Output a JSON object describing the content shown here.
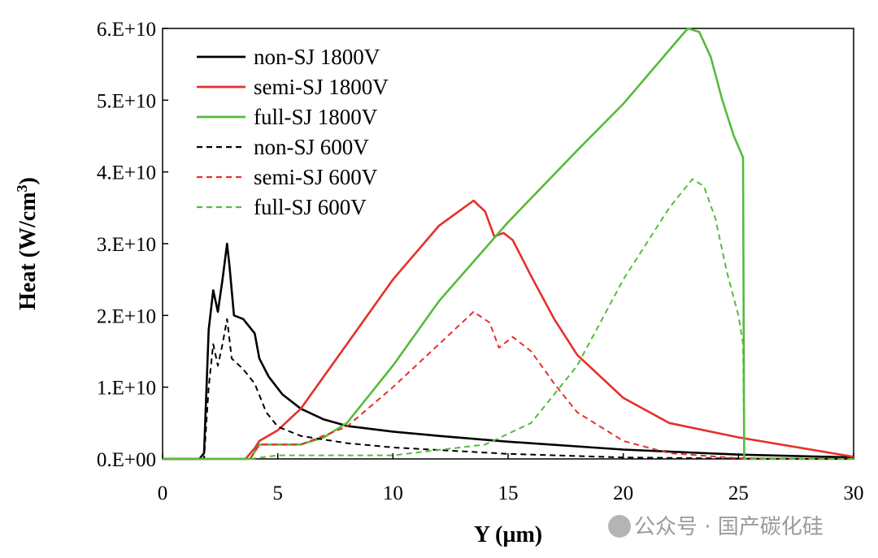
{
  "chart_data": {
    "type": "line",
    "title": "",
    "xlabel": "Y (µm)",
    "ylabel_main": "Heat  (W/cm",
    "ylabel_sup": "3",
    "ylabel_close": ")",
    "xlim": [
      0,
      30
    ],
    "ylim": [
      0,
      60000000000
    ],
    "xticks": [
      0,
      5,
      10,
      15,
      20,
      25,
      30
    ],
    "xtick_labels": [
      "0",
      "5",
      "10",
      "15",
      "20",
      "25",
      "30"
    ],
    "yticks": [
      0,
      10000000000,
      20000000000,
      30000000000,
      40000000000,
      50000000000,
      60000000000
    ],
    "ytick_labels": [
      "0.E+00",
      "1.E+10",
      "2.E+10",
      "3.E+10",
      "4.E+10",
      "5.E+10",
      "6.E+10"
    ],
    "grid": false,
    "legend_position": "top-left",
    "series": [
      {
        "name": "non-SJ 1800V",
        "color": "#000000",
        "dash": "solid",
        "x": [
          0,
          1.6,
          1.8,
          2.0,
          2.2,
          2.4,
          2.6,
          2.8,
          2.9,
          3.1,
          3.5,
          4.0,
          4.2,
          4.6,
          5.2,
          6,
          7,
          8,
          10,
          12,
          15,
          20,
          25,
          30
        ],
        "y": [
          0,
          0,
          800000000.0,
          18000000000.0,
          23500000000.0,
          20500000000.0,
          25000000000.0,
          30000000000.0,
          27000000000.0,
          20000000000.0,
          19500000000.0,
          17500000000.0,
          14000000000.0,
          11500000000.0,
          9000000000.0,
          7000000000.0,
          5500000000.0,
          4600000000.0,
          3800000000.0,
          3200000000.0,
          2400000000.0,
          1300000000.0,
          600000000.0,
          200000000.0
        ]
      },
      {
        "name": "semi-SJ 1800V",
        "color": "#e5302b",
        "dash": "solid",
        "x": [
          0,
          3.6,
          4.0,
          4.2,
          5,
          6,
          8,
          10,
          12,
          13.5,
          14.0,
          14.4,
          14.8,
          15.2,
          16,
          17,
          18,
          20,
          22,
          25,
          30
        ],
        "y": [
          0,
          0,
          1500000000.0,
          2500000000.0,
          4000000000.0,
          7000000000.0,
          16000000000.0,
          25000000000.0,
          32500000000.0,
          36000000000.0,
          34500000000.0,
          31000000000.0,
          31500000000.0,
          30500000000.0,
          25500000000.0,
          19500000000.0,
          14500000000.0,
          8500000000.0,
          5000000000.0,
          3000000000.0,
          300000000.0
        ]
      },
      {
        "name": "full-SJ 1800V",
        "color": "#55bb3c",
        "dash": "solid",
        "x": [
          0,
          3.8,
          4.2,
          6,
          7,
          8,
          10,
          12,
          15,
          18,
          20,
          22,
          22.8,
          23.3,
          23.8,
          24.3,
          24.8,
          25.2,
          25.25,
          25.3,
          30
        ],
        "y": [
          0,
          0,
          2000000000.0,
          2000000000.0,
          3000000000.0,
          5000000000.0,
          13000000000.0,
          22000000000.0,
          33000000000.0,
          43000000000.0,
          49500000000.0,
          57000000000.0,
          60000000000.0,
          59500000000.0,
          56000000000.0,
          50000000000.0,
          45000000000.0,
          42000000000.0,
          0,
          0,
          0
        ]
      },
      {
        "name": "non-SJ 600V",
        "color": "#000000",
        "dash": "dashed",
        "x": [
          0,
          1.8,
          2.0,
          2.2,
          2.4,
          2.6,
          2.8,
          3.0,
          3.5,
          4.0,
          4.5,
          5,
          6,
          8,
          10,
          15,
          20,
          25,
          30
        ],
        "y": [
          0,
          0,
          10000000000.0,
          16000000000.0,
          13000000000.0,
          16000000000.0,
          19500000000.0,
          14000000000.0,
          12500000000.0,
          10500000000.0,
          6500000000.0,
          4500000000.0,
          3200000000.0,
          2200000000.0,
          1600000000.0,
          700000000.0,
          200000000.0,
          50000000.0,
          0
        ]
      },
      {
        "name": "semi-SJ 600V",
        "color": "#e5302b",
        "dash": "dashed",
        "x": [
          0,
          3.8,
          4.2,
          6,
          8,
          10,
          12,
          13.5,
          14.2,
          14.6,
          15.2,
          16,
          17,
          18,
          20,
          22,
          25,
          30
        ],
        "y": [
          0,
          0,
          2000000000.0,
          2000000000.0,
          4500000000.0,
          10000000000.0,
          16000000000.0,
          20500000000.0,
          19000000000.0,
          15500000000.0,
          17000000000.0,
          15000000000.0,
          10500000000.0,
          6500000000.0,
          2500000000.0,
          800000000.0,
          100000000.0,
          0
        ]
      },
      {
        "name": "full-SJ 600V",
        "color": "#55bb3c",
        "dash": "dashed",
        "x": [
          0,
          3.8,
          5,
          10,
          14,
          16,
          18,
          20,
          22,
          23,
          23.5,
          24,
          24.5,
          25,
          25.2,
          25.25,
          30
        ],
        "y": [
          0,
          0,
          500000000.0,
          500000000.0,
          2000000000.0,
          5000000000.0,
          13000000000.0,
          25000000000.0,
          35000000000.0,
          39000000000.0,
          38000000000.0,
          33500000000.0,
          26000000000.0,
          20000000000.0,
          16000000000.0,
          0,
          0
        ]
      }
    ]
  },
  "watermark": "公众号 · 国产碳化硅"
}
